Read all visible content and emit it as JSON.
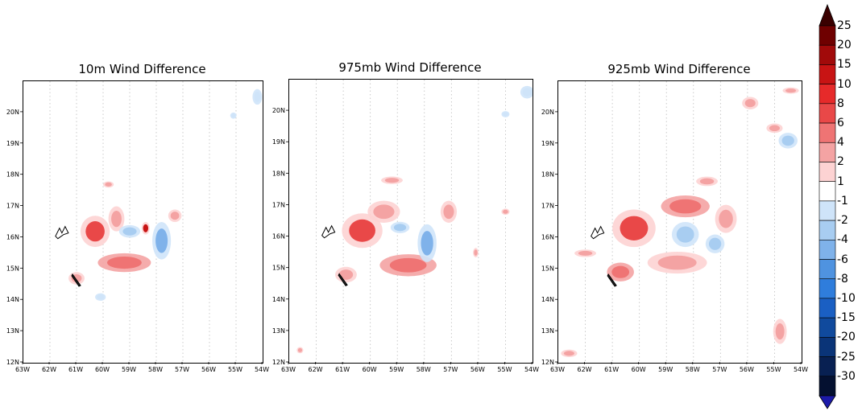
{
  "colors": {
    "red_shades": [
      "#fdd3d3",
      "#f4a3a3",
      "#ef7474",
      "#e94848",
      "#e62a2a",
      "#c81414",
      "#a10a0a",
      "#6f0000"
    ],
    "blue_shades": [
      "#cfe4f9",
      "#a8cdf1",
      "#7fb2ea",
      "#4f93e0",
      "#2f7ddc",
      "#1a5fc3",
      "#104a9d",
      "#0a3478",
      "#082052"
    ],
    "neutral": "#ffffff",
    "gridline": "#bdbdbd"
  },
  "chart_data": [
    {
      "type": "heatmap",
      "title": "10m Wind Difference",
      "xticks": [
        "63W",
        "62W",
        "61W",
        "60W",
        "59W",
        "58W",
        "57W",
        "56W",
        "55W",
        "54W"
      ],
      "yticks": [
        "12N",
        "13N",
        "14N",
        "15N",
        "16N",
        "17N",
        "18N",
        "19N",
        "20N"
      ],
      "xlim": [
        -63,
        -54
      ],
      "ylim": [
        12,
        21
      ],
      "blobs": [
        {
          "lon": -60.3,
          "lat": 16.2,
          "rx": 0.55,
          "ry": 0.5,
          "level": 6
        },
        {
          "lon": -59.5,
          "lat": 16.6,
          "rx": 0.3,
          "ry": 0.4,
          "level": 2
        },
        {
          "lon": -58.4,
          "lat": 16.3,
          "rx": 0.15,
          "ry": 0.2,
          "level": 10
        },
        {
          "lon": -59.2,
          "lat": 15.2,
          "rx": 1.0,
          "ry": 0.3,
          "level": 4
        },
        {
          "lon": -57.8,
          "lat": 15.9,
          "rx": 0.35,
          "ry": 0.6,
          "level": -4
        },
        {
          "lon": -59.0,
          "lat": 16.2,
          "rx": 0.4,
          "ry": 0.2,
          "level": -2
        },
        {
          "lon": -57.3,
          "lat": 16.7,
          "rx": 0.25,
          "ry": 0.2,
          "level": 2
        },
        {
          "lon": -59.8,
          "lat": 17.7,
          "rx": 0.2,
          "ry": 0.1,
          "level": 2
        },
        {
          "lon": -61.0,
          "lat": 14.7,
          "rx": 0.3,
          "ry": 0.2,
          "level": 2
        },
        {
          "lon": -60.1,
          "lat": 14.1,
          "rx": 0.2,
          "ry": 0.12,
          "level": -1
        },
        {
          "lon": -55.1,
          "lat": 19.9,
          "rx": 0.12,
          "ry": 0.1,
          "level": -1
        },
        {
          "lon": -54.2,
          "lat": 20.5,
          "rx": 0.18,
          "ry": 0.25,
          "level": -1
        }
      ]
    },
    {
      "type": "heatmap",
      "title": "975mb Wind Difference",
      "xticks": [
        "63W",
        "62W",
        "61W",
        "60W",
        "59W",
        "58W",
        "57W",
        "56W",
        "55W",
        "54W"
      ],
      "yticks": [
        "12N",
        "13N",
        "14N",
        "15N",
        "16N",
        "17N",
        "18N",
        "19N",
        "20N"
      ],
      "xlim": [
        -63,
        -54
      ],
      "ylim": [
        12,
        21
      ],
      "blobs": [
        {
          "lon": -60.3,
          "lat": 16.2,
          "rx": 0.75,
          "ry": 0.55,
          "level": 6
        },
        {
          "lon": -59.5,
          "lat": 16.8,
          "rx": 0.6,
          "ry": 0.35,
          "level": 2
        },
        {
          "lon": -58.6,
          "lat": 15.1,
          "rx": 1.05,
          "ry": 0.35,
          "level": 4
        },
        {
          "lon": -57.9,
          "lat": 15.8,
          "rx": 0.35,
          "ry": 0.6,
          "level": -4
        },
        {
          "lon": -58.9,
          "lat": 16.3,
          "rx": 0.35,
          "ry": 0.18,
          "level": -2
        },
        {
          "lon": -57.1,
          "lat": 16.8,
          "rx": 0.3,
          "ry": 0.35,
          "level": 2
        },
        {
          "lon": -59.2,
          "lat": 17.8,
          "rx": 0.4,
          "ry": 0.12,
          "level": 2
        },
        {
          "lon": -60.9,
          "lat": 14.8,
          "rx": 0.4,
          "ry": 0.25,
          "level": 2
        },
        {
          "lon": -62.6,
          "lat": 12.4,
          "rx": 0.12,
          "ry": 0.1,
          "level": 2
        },
        {
          "lon": -55.0,
          "lat": 16.8,
          "rx": 0.15,
          "ry": 0.1,
          "level": 2
        },
        {
          "lon": -56.1,
          "lat": 15.5,
          "rx": 0.1,
          "ry": 0.15,
          "level": 2
        },
        {
          "lon": -55.0,
          "lat": 19.9,
          "rx": 0.15,
          "ry": 0.1,
          "level": -1
        },
        {
          "lon": -54.2,
          "lat": 20.6,
          "rx": 0.25,
          "ry": 0.2,
          "level": -1
        }
      ]
    },
    {
      "type": "heatmap",
      "title": "925mb Wind Difference",
      "xticks": [
        "63W",
        "62W",
        "61W",
        "60W",
        "59W",
        "58W",
        "57W",
        "56W",
        "55W",
        "54W"
      ],
      "yticks": [
        "12N",
        "13N",
        "14N",
        "15N",
        "16N",
        "17N",
        "18N",
        "19N",
        "20N"
      ],
      "xlim": [
        -63,
        -54
      ],
      "ylim": [
        12,
        21
      ],
      "blobs": [
        {
          "lon": -60.2,
          "lat": 16.3,
          "rx": 0.8,
          "ry": 0.6,
          "level": 6
        },
        {
          "lon": -58.3,
          "lat": 17.0,
          "rx": 0.9,
          "ry": 0.35,
          "level": 4
        },
        {
          "lon": -58.6,
          "lat": 15.2,
          "rx": 1.1,
          "ry": 0.35,
          "level": 2
        },
        {
          "lon": -58.3,
          "lat": 16.1,
          "rx": 0.5,
          "ry": 0.4,
          "level": -2
        },
        {
          "lon": -57.2,
          "lat": 15.8,
          "rx": 0.35,
          "ry": 0.3,
          "level": -2
        },
        {
          "lon": -56.8,
          "lat": 16.6,
          "rx": 0.4,
          "ry": 0.45,
          "level": 2
        },
        {
          "lon": -57.5,
          "lat": 17.8,
          "rx": 0.4,
          "ry": 0.15,
          "level": 2
        },
        {
          "lon": -60.7,
          "lat": 14.9,
          "rx": 0.5,
          "ry": 0.3,
          "level": 4
        },
        {
          "lon": -62.0,
          "lat": 15.5,
          "rx": 0.4,
          "ry": 0.12,
          "level": 2
        },
        {
          "lon": -55.9,
          "lat": 20.3,
          "rx": 0.3,
          "ry": 0.2,
          "level": 2
        },
        {
          "lon": -55.0,
          "lat": 19.5,
          "rx": 0.3,
          "ry": 0.15,
          "level": 2
        },
        {
          "lon": -54.5,
          "lat": 19.1,
          "rx": 0.35,
          "ry": 0.25,
          "level": -2
        },
        {
          "lon": -54.8,
          "lat": 13.0,
          "rx": 0.25,
          "ry": 0.4,
          "level": 2
        },
        {
          "lon": -62.6,
          "lat": 12.3,
          "rx": 0.3,
          "ry": 0.12,
          "level": 2
        },
        {
          "lon": -54.4,
          "lat": 20.7,
          "rx": 0.3,
          "ry": 0.1,
          "level": 2
        }
      ]
    }
  ],
  "colorbar": {
    "labels": [
      "25",
      "20",
      "15",
      "10",
      "8",
      "6",
      "4",
      "2",
      "1",
      "-1",
      "-2",
      "-4",
      "-6",
      "-8",
      "-10",
      "-15",
      "-20",
      "-25",
      "-30"
    ],
    "colors": [
      "#6f0000",
      "#a10a0a",
      "#c81414",
      "#e62a2a",
      "#e94848",
      "#ef7474",
      "#f4a3a3",
      "#fdd3d3",
      "#ffffff",
      "#cfe4f9",
      "#a8cdf1",
      "#7fb2ea",
      "#4f93e0",
      "#2f7ddc",
      "#1a5fc3",
      "#104a9d",
      "#0a3478",
      "#082052",
      "#041030"
    ],
    "top_arrow_color": "#3a0000",
    "bottom_arrow_color": "#1c1aa8"
  }
}
